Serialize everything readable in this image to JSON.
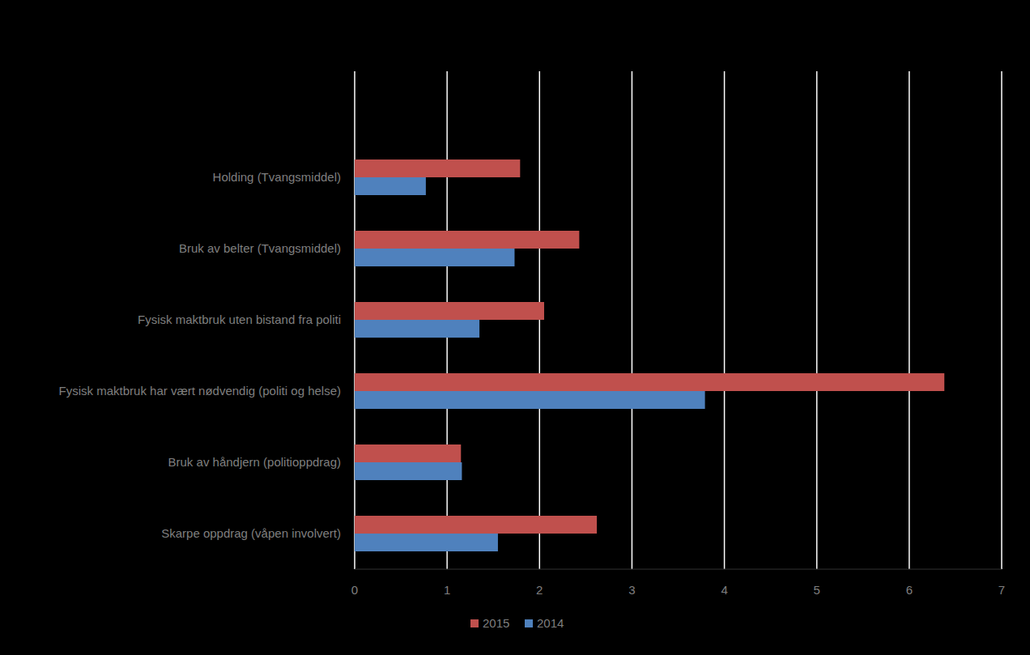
{
  "chart_data": {
    "type": "bar",
    "orientation": "horizontal",
    "categories": [
      "Holding (Tvangsmiddel)",
      "Bruk av belter (Tvangsmiddel)",
      "Fysisk maktbruk uten bistand fra politi",
      "Fysisk maktbruk har vært nødvendig (politi og helse)",
      "Bruk av håndjern (politioppdrag)",
      "Skarpe oppdrag (våpen involvert)"
    ],
    "series": [
      {
        "name": "2015",
        "color": "#c0504d",
        "values": [
          1.79,
          2.43,
          2.05,
          6.38,
          1.15,
          2.62
        ]
      },
      {
        "name": "2014",
        "color": "#4f81bd",
        "values": [
          0.77,
          1.73,
          1.35,
          3.79,
          1.16,
          1.55
        ]
      }
    ],
    "xlim": [
      0,
      7
    ],
    "xticks": [
      0,
      1,
      2,
      3,
      4,
      5,
      6,
      7
    ],
    "grid": true,
    "legend": "bottom"
  }
}
